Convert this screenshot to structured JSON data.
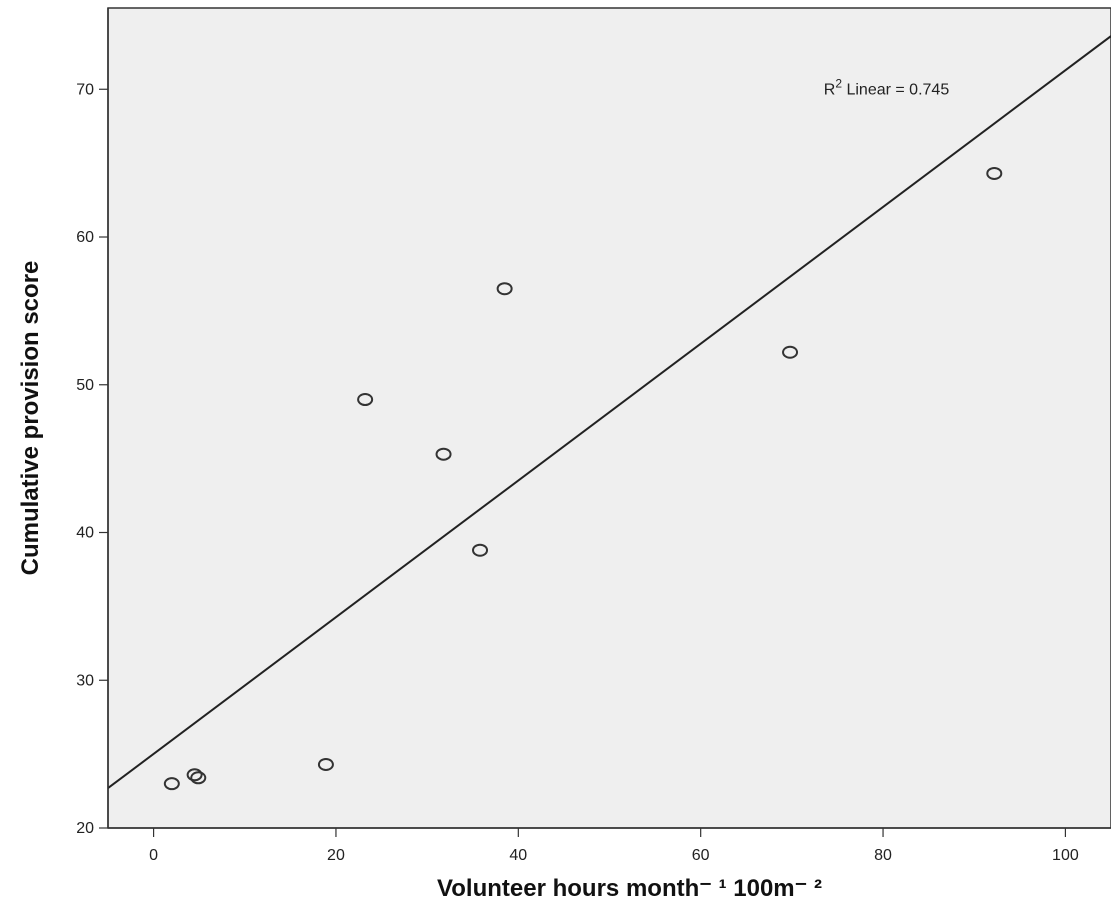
{
  "colors": {
    "plot_background": "#efefef",
    "marker_stroke": "#333333",
    "fit_line": "#222222",
    "axis": "#333333"
  },
  "chart_data": {
    "type": "scatter",
    "title": "",
    "xlabel": "Volunteer hours month",
    "xlabel_suffix": "⁻ ¹ 100m⁻ ²",
    "ylabel": "Cumulative provision score",
    "xlim": [
      -5,
      105
    ],
    "ylim": [
      20,
      75.5
    ],
    "xticks": [
      0,
      20,
      40,
      60,
      80,
      100
    ],
    "yticks": [
      20,
      30,
      40,
      50,
      60,
      70
    ],
    "grid": false,
    "marker": "hollow-circle",
    "points": [
      {
        "x": 2.0,
        "y": 23.0
      },
      {
        "x": 4.5,
        "y": 23.6
      },
      {
        "x": 4.9,
        "y": 23.4
      },
      {
        "x": 18.9,
        "y": 24.3
      },
      {
        "x": 23.2,
        "y": 49.0
      },
      {
        "x": 31.8,
        "y": 45.3
      },
      {
        "x": 35.8,
        "y": 38.8
      },
      {
        "x": 38.5,
        "y": 56.5
      },
      {
        "x": 69.8,
        "y": 52.2
      },
      {
        "x": 92.2,
        "y": 64.3
      }
    ],
    "fit_line": {
      "type": "linear",
      "x": [
        -5,
        105
      ],
      "y": [
        22.7,
        73.6
      ]
    },
    "annotation": {
      "base": "R",
      "superscript": "2",
      "text": " Linear = 0.745",
      "x": 73.5,
      "y": 70.0
    }
  }
}
